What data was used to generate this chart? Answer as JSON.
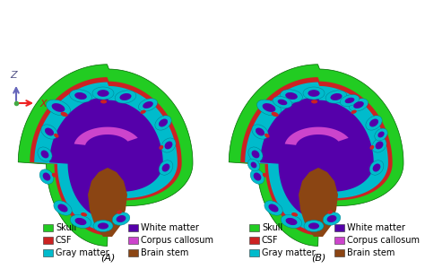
{
  "background_color": "#ffffff",
  "panel_labels": [
    "(A)",
    "(B)"
  ],
  "skull_color": "#22cc22",
  "skull_edge_color": "#006600",
  "csf_color": "#cc2222",
  "gray_color": "#00bbcc",
  "white_color": "#5500aa",
  "corpus_color": "#cc44cc",
  "stem_color": "#8B4513",
  "legend_items": [
    {
      "label": "Skull",
      "color": "#22cc22"
    },
    {
      "label": "CSF",
      "color": "#cc2222"
    },
    {
      "label": "Gray matter",
      "color": "#00bbcc"
    },
    {
      "label": "White matter",
      "color": "#5500aa"
    },
    {
      "label": "Corpus callosum",
      "color": "#cc44cc"
    },
    {
      "label": "Brain stem",
      "color": "#8B4513"
    }
  ],
  "font_size": 7,
  "label_font_size": 8
}
